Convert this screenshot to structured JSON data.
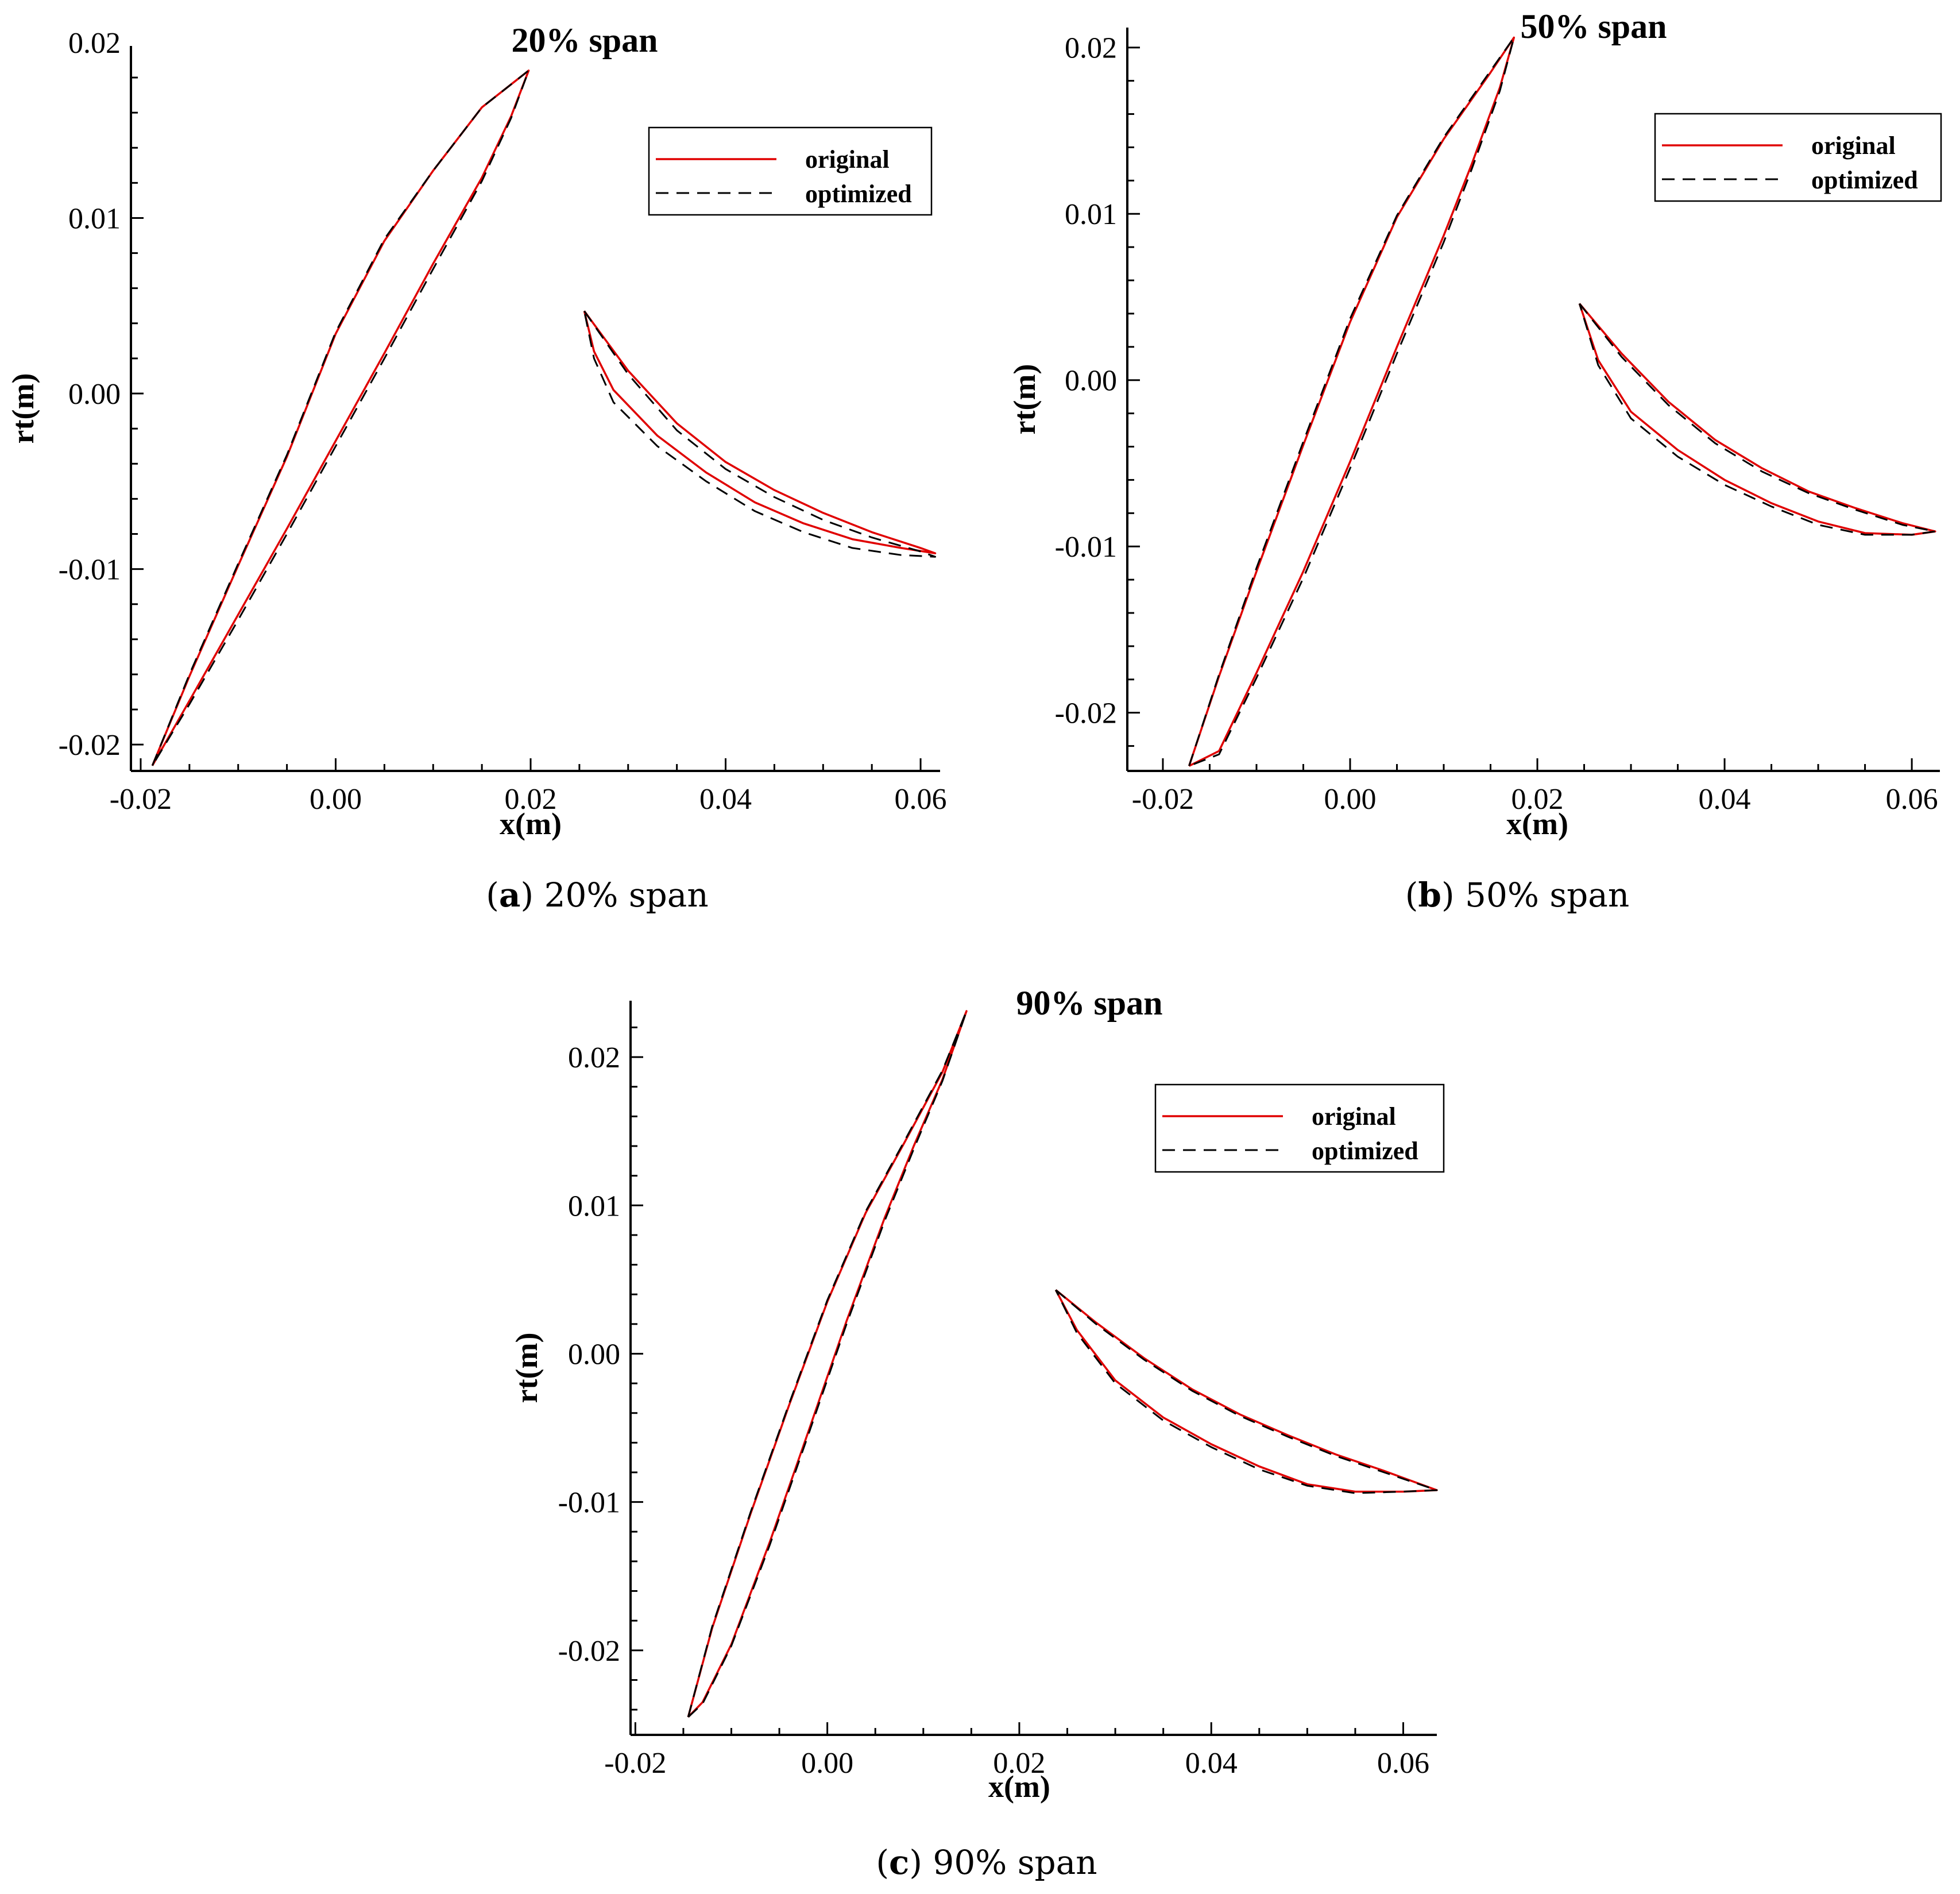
{
  "chart_data": [
    {
      "type": "line",
      "title": "20% span",
      "xlabel": "x(m)",
      "ylabel": "rt(m)",
      "xlim": [
        -0.021,
        0.062
      ],
      "ylim": [
        -0.0215,
        0.0198
      ],
      "xticks": [
        -0.02,
        0.0,
        0.02,
        0.04,
        0.06
      ],
      "xtick_labels": [
        "-0.02",
        "0.00",
        "0.02",
        "0.04",
        "0.06"
      ],
      "yticks": [
        -0.02,
        -0.01,
        0.0,
        0.01,
        0.02
      ],
      "ytick_labels": [
        "-0.02",
        "-0.01",
        "0.00",
        "0.01",
        "0.02"
      ],
      "legend": [
        "original",
        "optimized"
      ],
      "legend_position": "top-right",
      "caption": {
        "letter": "a",
        "text": "20% span"
      },
      "series": [
        {
          "name": "original",
          "blade": "rotor",
          "x": [
            -0.0188,
            -0.015,
            -0.01,
            -0.005,
            0.0,
            0.005,
            0.01,
            0.015,
            0.0198,
            0.018,
            0.015,
            0.01,
            0.005,
            0.0,
            -0.005,
            -0.01,
            -0.015,
            -0.0188
          ],
          "y": [
            -0.0212,
            -0.0161,
            -0.0098,
            -0.0036,
            0.0034,
            0.0087,
            0.0127,
            0.0163,
            0.0184,
            0.0158,
            0.0123,
            0.0074,
            0.0023,
            -0.0027,
            -0.0077,
            -0.0126,
            -0.0175,
            -0.0212
          ]
        },
        {
          "name": "optimized",
          "blade": "rotor",
          "x": [
            -0.0188,
            -0.015,
            -0.01,
            -0.005,
            0.0,
            0.005,
            0.01,
            0.015,
            0.0198,
            0.018,
            0.015,
            0.01,
            0.005,
            0.0,
            -0.005,
            -0.01,
            -0.015,
            -0.0188
          ],
          "y": [
            -0.0212,
            -0.016,
            -0.0097,
            -0.0035,
            0.0035,
            0.0088,
            0.0127,
            0.0163,
            0.0184,
            0.0157,
            0.0121,
            0.0071,
            0.002,
            -0.003,
            -0.008,
            -0.0129,
            -0.0177,
            -0.0212
          ]
        },
        {
          "name": "original",
          "blade": "stator",
          "x": [
            0.0255,
            0.03,
            0.035,
            0.04,
            0.045,
            0.05,
            0.055,
            0.06,
            0.0615,
            0.058,
            0.053,
            0.048,
            0.043,
            0.038,
            0.033,
            0.0285,
            0.0265,
            0.0255
          ],
          "y": [
            0.0047,
            0.0013,
            -0.0017,
            -0.0039,
            -0.0055,
            -0.0068,
            -0.0079,
            -0.0088,
            -0.0091,
            -0.0088,
            -0.0083,
            -0.0074,
            -0.0062,
            -0.0045,
            -0.0024,
            0.0002,
            0.0024,
            0.0047
          ]
        },
        {
          "name": "optimized",
          "blade": "stator",
          "x": [
            0.0255,
            0.03,
            0.035,
            0.04,
            0.045,
            0.05,
            0.055,
            0.06,
            0.0615,
            0.058,
            0.053,
            0.048,
            0.043,
            0.038,
            0.033,
            0.0285,
            0.0265,
            0.0255
          ],
          "y": [
            0.0047,
            0.0011,
            -0.0021,
            -0.0043,
            -0.0059,
            -0.0072,
            -0.0082,
            -0.009,
            -0.0093,
            -0.0092,
            -0.0088,
            -0.0079,
            -0.0067,
            -0.005,
            -0.003,
            -0.0005,
            0.002,
            0.0047
          ]
        }
      ]
    },
    {
      "type": "line",
      "title": "50% span",
      "xlabel": "x(m)",
      "ylabel": "rt(m)",
      "xlim": [
        -0.0238,
        0.063
      ],
      "ylim": [
        -0.0235,
        0.0212
      ],
      "xticks": [
        -0.02,
        0.0,
        0.02,
        0.04,
        0.06
      ],
      "xtick_labels": [
        "-0.02",
        "0.00",
        "0.02",
        "0.04",
        "0.06"
      ],
      "yticks": [
        -0.02,
        -0.01,
        0.0,
        0.01,
        0.02
      ],
      "ytick_labels": [
        "-0.02",
        "-0.01",
        "0.00",
        "0.01",
        "0.02"
      ],
      "legend": [
        "original",
        "optimized"
      ],
      "legend_position": "top-right",
      "caption": {
        "letter": "b",
        "text": "50% span"
      },
      "series": [
        {
          "name": "original",
          "blade": "rotor",
          "x": [
            -0.0172,
            -0.014,
            -0.01,
            -0.005,
            0.0,
            0.005,
            0.01,
            0.015,
            0.0175,
            0.016,
            0.013,
            0.01,
            0.005,
            0.0,
            -0.005,
            -0.01,
            -0.014,
            -0.0172
          ],
          "y": [
            -0.0232,
            -0.0178,
            -0.0115,
            -0.0039,
            0.0035,
            0.0098,
            0.0145,
            0.0185,
            0.0206,
            0.0176,
            0.013,
            0.0087,
            0.002,
            -0.0049,
            -0.0115,
            -0.0176,
            -0.0223,
            -0.0232
          ]
        },
        {
          "name": "optimized",
          "blade": "rotor",
          "x": [
            -0.0172,
            -0.014,
            -0.01,
            -0.005,
            0.0,
            0.005,
            0.01,
            0.015,
            0.0175,
            0.016,
            0.013,
            0.01,
            0.005,
            0.0,
            -0.005,
            -0.01,
            -0.014,
            -0.0172
          ],
          "y": [
            -0.0232,
            -0.0177,
            -0.0113,
            -0.0037,
            0.0037,
            0.0099,
            0.0146,
            0.0186,
            0.0206,
            0.0174,
            0.0127,
            0.0083,
            0.0016,
            -0.0053,
            -0.0119,
            -0.0179,
            -0.0225,
            -0.0232
          ]
        },
        {
          "name": "original",
          "blade": "stator",
          "x": [
            0.0245,
            0.029,
            0.034,
            0.039,
            0.044,
            0.049,
            0.054,
            0.059,
            0.0625,
            0.06,
            0.055,
            0.05,
            0.045,
            0.04,
            0.035,
            0.03,
            0.0265,
            0.0245
          ],
          "y": [
            0.0046,
            0.0016,
            -0.0013,
            -0.0036,
            -0.0053,
            -0.0067,
            -0.0077,
            -0.0086,
            -0.0091,
            -0.0093,
            -0.0092,
            -0.0085,
            -0.0074,
            -0.006,
            -0.0042,
            -0.0019,
            0.0012,
            0.0046
          ]
        },
        {
          "name": "optimized",
          "blade": "stator",
          "x": [
            0.0245,
            0.029,
            0.034,
            0.039,
            0.044,
            0.049,
            0.054,
            0.059,
            0.0625,
            0.06,
            0.055,
            0.05,
            0.045,
            0.04,
            0.035,
            0.03,
            0.0265,
            0.0245
          ],
          "y": [
            0.0046,
            0.0014,
            -0.0015,
            -0.0038,
            -0.0055,
            -0.0068,
            -0.0078,
            -0.0087,
            -0.0091,
            -0.0093,
            -0.0093,
            -0.0087,
            -0.0076,
            -0.0063,
            -0.0046,
            -0.0023,
            0.0009,
            0.0046
          ]
        }
      ]
    },
    {
      "type": "line",
      "title": "90% span",
      "xlabel": "x(m)",
      "ylabel": "rt(m)",
      "xlim": [
        -0.0205,
        0.0635
      ],
      "ylim": [
        -0.0257,
        0.0238
      ],
      "xticks": [
        -0.02,
        0.0,
        0.02,
        0.04,
        0.06
      ],
      "xtick_labels": [
        "-0.02",
        "0.00",
        "0.02",
        "0.04",
        "0.06"
      ],
      "yticks": [
        -0.02,
        -0.01,
        0.0,
        0.01,
        0.02
      ],
      "ytick_labels": [
        "-0.02",
        "-0.01",
        "0.00",
        "0.01",
        "0.02"
      ],
      "legend": [
        "original",
        "optimized"
      ],
      "legend_position": "top-right",
      "caption": {
        "letter": "c",
        "text": "90% span"
      },
      "series": [
        {
          "name": "original",
          "blade": "rotor",
          "x": [
            -0.0145,
            -0.012,
            -0.008,
            -0.004,
            0.0,
            0.004,
            0.008,
            0.012,
            0.0145,
            0.012,
            0.009,
            0.006,
            0.002,
            -0.002,
            -0.006,
            -0.01,
            -0.013,
            -0.0145
          ],
          "y": [
            -0.0245,
            -0.0185,
            -0.0108,
            -0.0035,
            0.0035,
            0.0095,
            0.0142,
            0.019,
            0.0231,
            0.0185,
            0.014,
            0.0092,
            0.0022,
            -0.0053,
            -0.0127,
            -0.0196,
            -0.0235,
            -0.0245
          ]
        },
        {
          "name": "optimized",
          "blade": "rotor",
          "x": [
            -0.0145,
            -0.012,
            -0.008,
            -0.004,
            0.0,
            0.004,
            0.008,
            0.012,
            0.0145,
            0.012,
            0.009,
            0.006,
            0.002,
            -0.002,
            -0.006,
            -0.01,
            -0.013,
            -0.0145
          ],
          "y": [
            -0.0245,
            -0.0184,
            -0.0107,
            -0.0034,
            0.0036,
            0.0096,
            0.0143,
            0.0191,
            0.0231,
            0.0184,
            0.0138,
            0.009,
            0.002,
            -0.0055,
            -0.0129,
            -0.0197,
            -0.0236,
            -0.0245
          ]
        },
        {
          "name": "original",
          "blade": "stator",
          "x": [
            0.0238,
            0.028,
            0.033,
            0.038,
            0.043,
            0.048,
            0.053,
            0.058,
            0.0635,
            0.06,
            0.055,
            0.05,
            0.045,
            0.04,
            0.035,
            0.03,
            0.026,
            0.0238
          ],
          "y": [
            0.0043,
            0.0021,
            -0.0003,
            -0.0024,
            -0.0041,
            -0.0055,
            -0.0068,
            -0.0079,
            -0.0092,
            -0.0093,
            -0.0093,
            -0.0088,
            -0.0076,
            -0.0061,
            -0.0043,
            -0.0018,
            0.0016,
            0.0043
          ]
        },
        {
          "name": "optimized",
          "blade": "stator",
          "x": [
            0.0238,
            0.028,
            0.033,
            0.038,
            0.043,
            0.048,
            0.053,
            0.058,
            0.0635,
            0.06,
            0.055,
            0.05,
            0.045,
            0.04,
            0.035,
            0.03,
            0.026,
            0.0238
          ],
          "y": [
            0.0043,
            0.002,
            -0.0004,
            -0.0025,
            -0.0042,
            -0.0056,
            -0.0069,
            -0.008,
            -0.0092,
            -0.0093,
            -0.0094,
            -0.0089,
            -0.0078,
            -0.0063,
            -0.0045,
            -0.002,
            0.0014,
            0.0043
          ]
        }
      ]
    }
  ]
}
